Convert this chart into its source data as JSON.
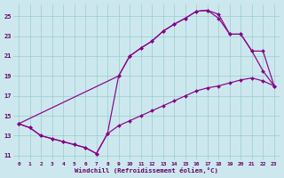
{
  "xlabel": "Windchill (Refroidissement éolien,°C)",
  "bg_color": "#cce8ee",
  "line_color": "#880088",
  "grid_color": "#99cccc",
  "xlim": [
    -0.5,
    23.5
  ],
  "ylim": [
    10.5,
    26.2
  ],
  "xticks": [
    0,
    1,
    2,
    3,
    4,
    5,
    6,
    7,
    8,
    9,
    10,
    11,
    12,
    13,
    14,
    15,
    16,
    17,
    18,
    19,
    20,
    21,
    22,
    23
  ],
  "yticks": [
    11,
    13,
    15,
    17,
    19,
    21,
    23,
    25
  ],
  "line_bottom": {
    "x": [
      0,
      1,
      2,
      3,
      4,
      5,
      6,
      7,
      8,
      9,
      10,
      11,
      12,
      13,
      14,
      15,
      16,
      17,
      18,
      19,
      20,
      21,
      22,
      23
    ],
    "y": [
      14.2,
      13.8,
      13.0,
      12.7,
      12.4,
      12.1,
      11.8,
      11.2,
      13.2,
      14.0,
      14.5,
      15.0,
      15.5,
      16.0,
      16.5,
      17.0,
      17.5,
      17.8,
      18.0,
      18.3,
      18.6,
      18.8,
      18.5,
      18.0
    ]
  },
  "line_top": {
    "x": [
      0,
      1,
      2,
      3,
      4,
      5,
      6,
      7,
      8,
      9,
      10,
      11,
      12,
      13,
      14,
      15,
      16,
      17,
      18,
      19,
      20,
      21,
      22,
      23
    ],
    "y": [
      14.2,
      13.8,
      13.0,
      12.7,
      12.4,
      12.1,
      11.8,
      11.2,
      13.2,
      19.0,
      21.0,
      21.8,
      22.5,
      23.5,
      24.2,
      24.8,
      25.5,
      25.6,
      25.2,
      23.2,
      23.2,
      21.5,
      19.5,
      18.0
    ]
  },
  "line_diag": {
    "x": [
      0,
      9,
      10,
      11,
      12,
      13,
      14,
      15,
      16,
      17,
      18,
      19,
      20,
      21,
      22,
      23
    ],
    "y": [
      14.2,
      19.0,
      21.0,
      21.8,
      22.5,
      23.5,
      24.2,
      24.8,
      25.5,
      25.6,
      24.8,
      23.2,
      23.2,
      21.5,
      21.5,
      18.0
    ]
  }
}
